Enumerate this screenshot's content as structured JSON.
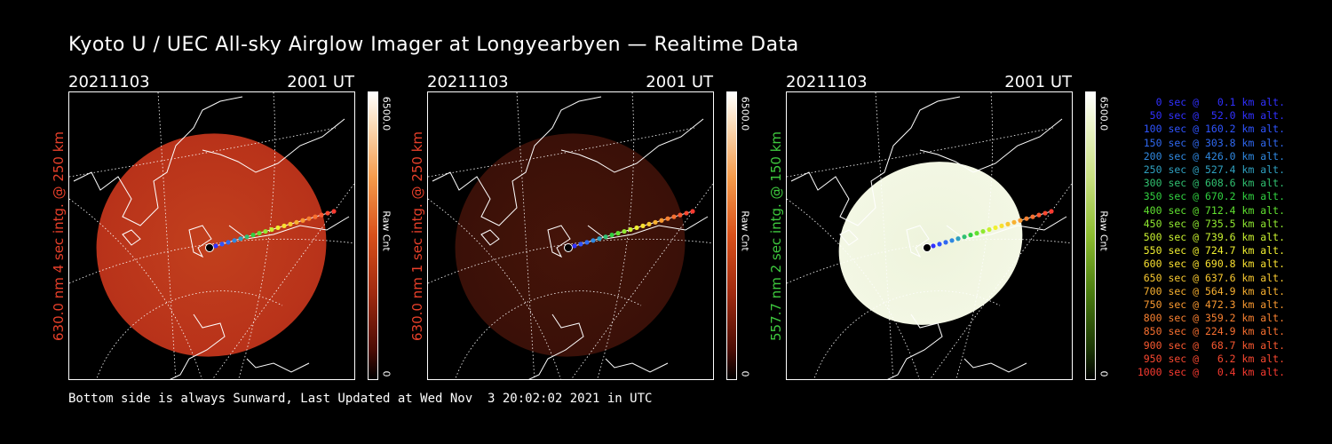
{
  "title": "Kyoto U / UEC All-sky Airglow Imager at Longyearbyen — Realtime Data",
  "panels": [
    {
      "date": "20211103",
      "time": "2001 UT",
      "ylabel": "630.0 nm 4 sec intg. @ 250 km",
      "ylabel_color": "#e8402a",
      "colorbar_max": "6500.0",
      "colorbar_min": "0",
      "colorbar_label": "Raw Cnt",
      "image_colors": [
        "#b8321a",
        "#c2401d"
      ]
    },
    {
      "date": "20211103",
      "time": "2001 UT",
      "ylabel": "630.0 nm 1 sec intg. @ 250 km",
      "ylabel_color": "#e8402a",
      "colorbar_max": "6500.0",
      "colorbar_min": "0",
      "colorbar_label": "Raw Cnt",
      "image_colors": [
        "#3a1008",
        "#451409"
      ]
    },
    {
      "date": "20211103",
      "time": "2001 UT",
      "ylabel": "557.7 nm 2 sec intg. @ 150 km",
      "ylabel_color": "#3ec93e",
      "colorbar_max": "6500.0",
      "colorbar_min": "0",
      "colorbar_label": "Raw Cnt",
      "image_colors": [
        "#f3f7e4",
        "#eef4dc"
      ]
    }
  ],
  "legend": [
    {
      "text": "0 sec @   0.1 km alt.",
      "color": "#3030ff"
    },
    {
      "text": "50 sec @  52.0 km alt.",
      "color": "#3030ff"
    },
    {
      "text": "100 sec @ 160.2 km alt.",
      "color": "#2f54ff"
    },
    {
      "text": "150 sec @ 303.8 km alt.",
      "color": "#2f68f0"
    },
    {
      "text": "200 sec @ 426.0 km alt.",
      "color": "#2f88e0"
    },
    {
      "text": "250 sec @ 527.4 km alt.",
      "color": "#2fa0c0"
    },
    {
      "text": "300 sec @ 608.6 km alt.",
      "color": "#30c070"
    },
    {
      "text": "350 sec @ 670.2 km alt.",
      "color": "#30d040"
    },
    {
      "text": "400 sec @ 712.4 km alt.",
      "color": "#60e030"
    },
    {
      "text": "450 sec @ 735.5 km alt.",
      "color": "#90e830"
    },
    {
      "text": "500 sec @ 739.6 km alt.",
      "color": "#c8f030"
    },
    {
      "text": "550 sec @ 724.7 km alt.",
      "color": "#f0f030"
    },
    {
      "text": "600 sec @ 690.8 km alt.",
      "color": "#f8e030"
    },
    {
      "text": "650 sec @ 637.6 km alt.",
      "color": "#f8c830"
    },
    {
      "text": "700 sec @ 564.9 km alt.",
      "color": "#f8b030"
    },
    {
      "text": "750 sec @ 472.3 km alt.",
      "color": "#f89830"
    },
    {
      "text": "800 sec @ 359.2 km alt.",
      "color": "#f88030"
    },
    {
      "text": "850 sec @ 224.9 km alt.",
      "color": "#f87030"
    },
    {
      "text": "900 sec @  68.7 km alt.",
      "color": "#f85830"
    },
    {
      "text": "950 sec @   6.2 km alt.",
      "color": "#f84830"
    },
    {
      "text": "1000 sec @   0.4 km alt.",
      "color": "#f83a30"
    }
  ],
  "footer": "Bottom side is always Sunward, Last Updated at Wed Nov  3 20:02:02 2021 in UTC"
}
